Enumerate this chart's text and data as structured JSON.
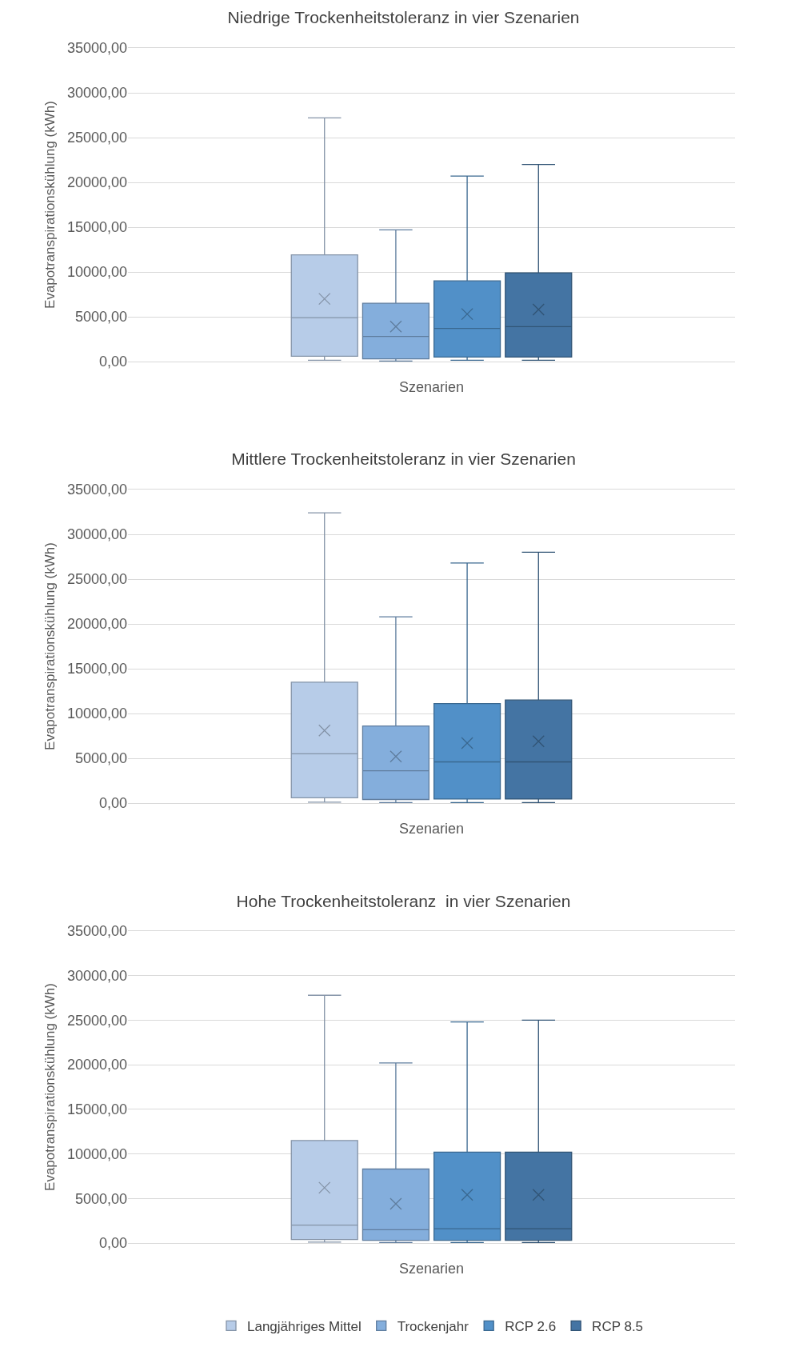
{
  "chart_data": [
    {
      "type": "box",
      "title": "Niedrige Trockenheitstoleranz in vier Szenarien",
      "xlabel": "Szenarien",
      "ylabel": "Evapotranspirationskühlung (kWh)",
      "categories": [
        null
      ],
      "ylim": [
        0,
        35000
      ],
      "yticks": [
        {
          "value": 0,
          "label": "0,00"
        },
        {
          "value": 5000,
          "label": "5000,00"
        },
        {
          "value": 10000,
          "label": "10000,00"
        },
        {
          "value": 15000,
          "label": "15000,00"
        },
        {
          "value": 20000,
          "label": "20000,00"
        },
        {
          "value": 25000,
          "label": "25000,00"
        },
        {
          "value": 30000,
          "label": "30000,00"
        },
        {
          "value": 35000,
          "label": "35000,00"
        }
      ],
      "grid": "y",
      "legend": false,
      "tick_labels": "y",
      "marker": "cross",
      "series": [
        {
          "color": "#b7cce8",
          "boxes": [
            {
              "low": 150,
              "q1": 600,
              "median": 4900,
              "q3": 11900,
              "high": 27200,
              "mean": 7000
            }
          ]
        },
        {
          "color": "#84aedc",
          "boxes": [
            {
              "low": 50,
              "q1": 300,
              "median": 2800,
              "q3": 6500,
              "high": 14700,
              "mean": 3900
            }
          ]
        },
        {
          "color": "#5190c8",
          "boxes": [
            {
              "low": 150,
              "q1": 500,
              "median": 3700,
              "q3": 9000,
              "high": 20700,
              "mean": 5300
            }
          ]
        },
        {
          "color": "#4474a3",
          "boxes": [
            {
              "low": 150,
              "q1": 500,
              "median": 3900,
              "q3": 9900,
              "high": 22000,
              "mean": 5800
            }
          ]
        }
      ]
    },
    {
      "type": "box",
      "title": "Mittlere Trockenheitstoleranz in vier Szenarien",
      "xlabel": "Szenarien",
      "ylabel": "Evapotranspirationskühlung (kWh)",
      "categories": [
        null
      ],
      "ylim": [
        0,
        35000
      ],
      "yticks": [
        {
          "value": 0,
          "label": "0,00"
        },
        {
          "value": 5000,
          "label": "5000,00"
        },
        {
          "value": 10000,
          "label": "10000,00"
        },
        {
          "value": 15000,
          "label": "15000,00"
        },
        {
          "value": 20000,
          "label": "20000,00"
        },
        {
          "value": 25000,
          "label": "25000,00"
        },
        {
          "value": 30000,
          "label": "30000,00"
        },
        {
          "value": 35000,
          "label": "35000,00"
        }
      ],
      "grid": "y",
      "legend": false,
      "tick_labels": "y",
      "marker": "cross",
      "series": [
        {
          "color": "#b7cce8",
          "boxes": [
            {
              "low": 100,
              "q1": 600,
              "median": 5500,
              "q3": 13500,
              "high": 32400,
              "mean": 8100
            }
          ]
        },
        {
          "color": "#84aedc",
          "boxes": [
            {
              "low": 50,
              "q1": 400,
              "median": 3600,
              "q3": 8600,
              "high": 20800,
              "mean": 5200
            }
          ]
        },
        {
          "color": "#5190c8",
          "boxes": [
            {
              "low": 50,
              "q1": 450,
              "median": 4600,
              "q3": 11100,
              "high": 26800,
              "mean": 6700
            }
          ]
        },
        {
          "color": "#4474a3",
          "boxes": [
            {
              "low": 50,
              "q1": 450,
              "median": 4600,
              "q3": 11500,
              "high": 28000,
              "mean": 6900
            }
          ]
        }
      ]
    },
    {
      "type": "box",
      "title": "Hohe Trockenheitstoleranz  in vier Szenarien",
      "xlabel": "Szenarien",
      "ylabel": "Evapotranspirationskühlung (kWh)",
      "categories": [
        null
      ],
      "ylim": [
        0,
        35000
      ],
      "yticks": [
        {
          "value": 0,
          "label": "0,00"
        },
        {
          "value": 5000,
          "label": "5000,00"
        },
        {
          "value": 10000,
          "label": "10000,00"
        },
        {
          "value": 15000,
          "label": "15000,00"
        },
        {
          "value": 20000,
          "label": "20000,00"
        },
        {
          "value": 25000,
          "label": "25000,00"
        },
        {
          "value": 30000,
          "label": "30000,00"
        },
        {
          "value": 35000,
          "label": "35000,00"
        }
      ],
      "grid": "y",
      "legend": "bottom",
      "tick_labels": "y",
      "marker": "cross",
      "series": [
        {
          "name": "Langjähriges Mittel",
          "color": "#b7cce8",
          "boxes": [
            {
              "low": 100,
              "q1": 400,
              "median": 2000,
              "q3": 11500,
              "high": 27800,
              "mean": 6200
            }
          ]
        },
        {
          "name": "Trockenjahr",
          "color": "#84aedc",
          "boxes": [
            {
              "low": 50,
              "q1": 300,
              "median": 1500,
              "q3": 8300,
              "high": 20200,
              "mean": 4400
            }
          ]
        },
        {
          "name": "RCP 2.6",
          "color": "#5190c8",
          "boxes": [
            {
              "low": 50,
              "q1": 300,
              "median": 1600,
              "q3": 10200,
              "high": 24800,
              "mean": 5400
            }
          ]
        },
        {
          "name": "RCP 8.5",
          "color": "#4474a3",
          "boxes": [
            {
              "low": 50,
              "q1": 300,
              "median": 1600,
              "q3": 10200,
              "high": 25000,
              "mean": 5400
            }
          ]
        }
      ]
    }
  ]
}
